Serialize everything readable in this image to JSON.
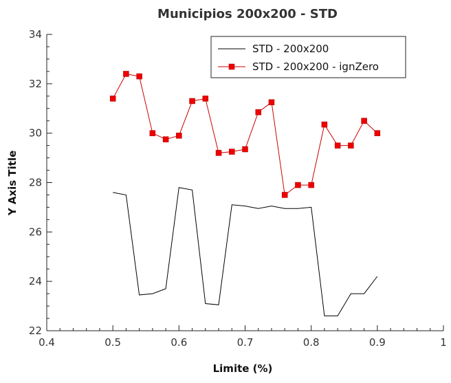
{
  "chart_data": {
    "type": "line",
    "title": "Municipios 200x200 - STD",
    "xlabel": "Limite (%)",
    "ylabel": "Y Axis Title",
    "xlim": [
      0.4,
      1.0
    ],
    "ylim": [
      22,
      34
    ],
    "x_ticks": [
      "0.4",
      "0.5",
      "0.6",
      "0.7",
      "0.8",
      "0.9",
      "1"
    ],
    "y_ticks": [
      "22",
      "24",
      "26",
      "28",
      "30",
      "32",
      "34"
    ],
    "legend_position": "top-right",
    "grid": false,
    "series": [
      {
        "name": "STD - 200x200",
        "color": "#000000",
        "marker": "none",
        "x": [
          0.5,
          0.52,
          0.54,
          0.56,
          0.58,
          0.6,
          0.62,
          0.64,
          0.66,
          0.68,
          0.7,
          0.72,
          0.74,
          0.76,
          0.78,
          0.8,
          0.82,
          0.84,
          0.86,
          0.88,
          0.9
        ],
        "y": [
          27.6,
          27.5,
          23.45,
          23.5,
          23.7,
          27.8,
          27.7,
          23.1,
          23.05,
          27.1,
          27.05,
          26.95,
          27.05,
          26.95,
          26.95,
          27.0,
          22.6,
          22.6,
          23.5,
          23.5,
          24.2
        ]
      },
      {
        "name": "STD - 200x200 - ignZero",
        "color": "#cc0000",
        "marker": "square",
        "x": [
          0.5,
          0.52,
          0.54,
          0.56,
          0.58,
          0.6,
          0.62,
          0.64,
          0.66,
          0.68,
          0.7,
          0.72,
          0.74,
          0.76,
          0.78,
          0.8,
          0.82,
          0.84,
          0.86,
          0.88,
          0.9
        ],
        "y": [
          31.4,
          32.4,
          32.3,
          30.0,
          29.75,
          29.9,
          31.3,
          31.4,
          29.2,
          29.25,
          29.35,
          30.85,
          31.25,
          27.5,
          27.9,
          27.9,
          30.35,
          29.5,
          29.5,
          30.5,
          30.0
        ]
      }
    ]
  }
}
